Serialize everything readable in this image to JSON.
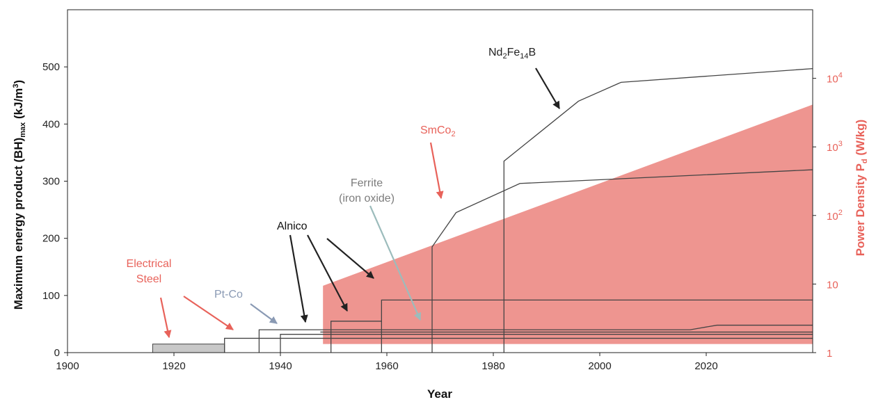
{
  "chart_data": {
    "type": "line",
    "xlabel": "Year",
    "ylabel": "Maximum energy product (BH)max (kJ/m³)",
    "ylabel_parts": {
      "main": "Maximum energy product (BH)",
      "sub": "max",
      "unit": " (kJ/m",
      "sup": "3",
      "close": ")"
    },
    "ylabel_right": "Power Density Pd (W/kg)",
    "ylabel_right_parts": {
      "main": "Power Density P",
      "sub": "d",
      "unit": " (W/kg)"
    },
    "xlim": [
      1900,
      2040
    ],
    "ylim": [
      0,
      600
    ],
    "y2lim_log": [
      1,
      100000
    ],
    "x_ticks": [
      "1900",
      "1920",
      "1940",
      "1960",
      "1980",
      "2000",
      "2020"
    ],
    "y_ticks": [
      "0",
      "100",
      "200",
      "300",
      "400",
      "500"
    ],
    "y2_ticks": [
      {
        "value": 1,
        "base": "1",
        "exp": ""
      },
      {
        "value": 10,
        "base": "10",
        "exp": ""
      },
      {
        "value": 100,
        "base": "10",
        "exp": "2"
      },
      {
        "value": 1000,
        "base": "10",
        "exp": "3"
      },
      {
        "value": 10000,
        "base": "10",
        "exp": "4"
      }
    ],
    "steel_bar": {
      "x0": 1916,
      "x1": 1929.5,
      "y": 15,
      "color": "#c8c8c8"
    },
    "power_density_band": {
      "color": "#ee9590",
      "points": [
        [
          1948,
          117
        ],
        [
          2040,
          434
        ],
        [
          2040,
          15
        ],
        [
          1948,
          15
        ]
      ]
    },
    "series": [
      {
        "material": "Electrical Steel",
        "points": [
          [
            1929.5,
            0
          ],
          [
            1929.5,
            25
          ],
          [
            2040,
            25
          ]
        ]
      },
      {
        "material": "Pt-Co",
        "points": [
          [
            1936,
            0
          ],
          [
            1936,
            40
          ],
          [
            2017,
            40
          ],
          [
            2022,
            48
          ],
          [
            2040,
            48
          ]
        ]
      },
      {
        "material": "Alnico",
        "points": [
          [
            1940,
            0
          ],
          [
            1940,
            32
          ],
          [
            2040,
            32
          ]
        ]
      },
      {
        "material": "Alnico",
        "points": [
          [
            1949.5,
            0
          ],
          [
            1949.5,
            55
          ],
          [
            1959,
            55
          ]
        ]
      },
      {
        "material": "Alnico",
        "points": [
          [
            1959,
            0
          ],
          [
            1959,
            92
          ],
          [
            2040,
            92
          ]
        ]
      },
      {
        "material": "Ferrite",
        "points": [
          [
            1947.5,
            36
          ],
          [
            2040,
            36
          ]
        ]
      },
      {
        "material": "SmCo2",
        "points": [
          [
            1968.5,
            0
          ],
          [
            1968.5,
            185
          ],
          [
            1973,
            245
          ],
          [
            1985,
            296
          ],
          [
            2040,
            320
          ]
        ]
      },
      {
        "material": "Nd2Fe14B",
        "points": [
          [
            1982,
            0
          ],
          [
            1982,
            335
          ],
          [
            1996,
            440
          ],
          [
            2004,
            473
          ],
          [
            2040,
            497
          ]
        ]
      }
    ],
    "labels": {
      "electrical_steel": [
        "Electrical",
        "Steel"
      ],
      "pt_co": "Pt-Co",
      "alnico": "Alnico",
      "ferrite": [
        "Ferrite",
        "(iron oxide)"
      ],
      "smco": {
        "main": "SmCo",
        "sub": "2"
      },
      "ndfeb": {
        "a": "Nd",
        "s1": "2",
        "b": "Fe",
        "s2": "14",
        "c": "B"
      }
    },
    "colors": {
      "lines": "#444444",
      "axis": "#222222",
      "red_text": "#e8625a",
      "pt_co": "#8a9ab4",
      "ferrite_text": "#7c7c7c",
      "ferrite_arrow": "#9cbcbc",
      "black_arrow": "#222222"
    }
  }
}
